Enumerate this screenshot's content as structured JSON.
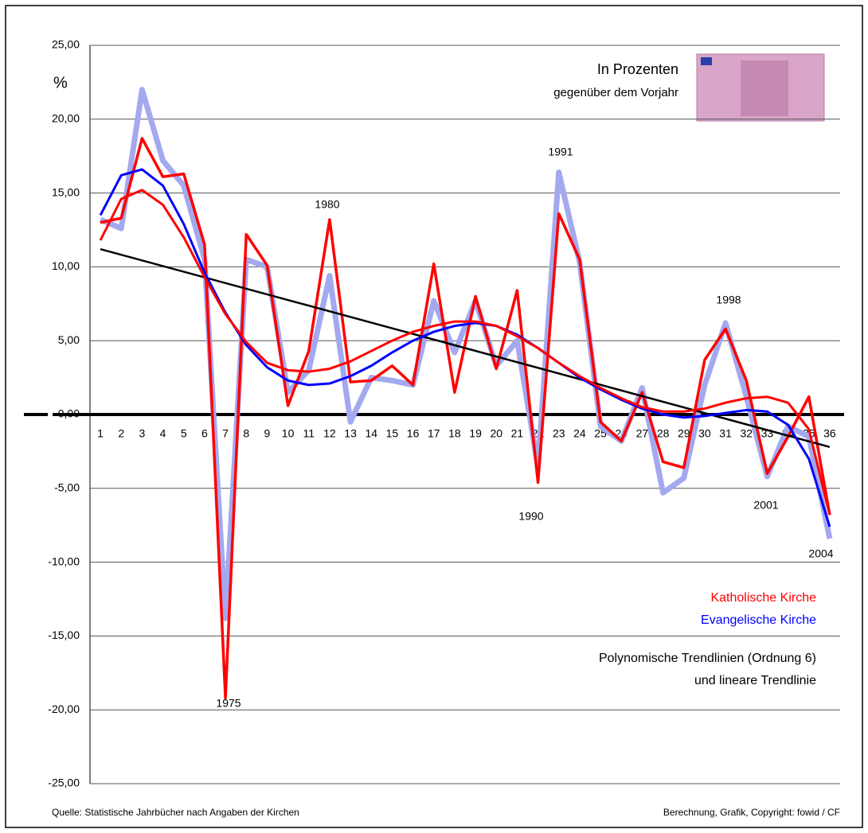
{
  "chart_data": {
    "type": "line",
    "x": [
      1,
      2,
      3,
      4,
      5,
      6,
      7,
      8,
      9,
      10,
      11,
      12,
      13,
      14,
      15,
      16,
      17,
      18,
      19,
      20,
      21,
      22,
      23,
      24,
      25,
      26,
      27,
      28,
      29,
      30,
      31,
      32,
      33,
      34,
      35,
      36
    ],
    "xlim": [
      0.5,
      36.5
    ],
    "ylim": [
      -25,
      25
    ],
    "yticks": [
      {
        "value": -25,
        "label": "-25,00"
      },
      {
        "value": -20,
        "label": "-20,00"
      },
      {
        "value": -15,
        "label": "-15,00"
      },
      {
        "value": -10,
        "label": "-10,00"
      },
      {
        "value": -5,
        "label": "-5,00"
      },
      {
        "value": 0,
        "label": "0,00"
      },
      {
        "value": 5,
        "label": "5,00"
      },
      {
        "value": 10,
        "label": "10,00"
      },
      {
        "value": 15,
        "label": "15,00"
      },
      {
        "value": 20,
        "label": "20,00"
      },
      {
        "value": 25,
        "label": "25,00"
      }
    ],
    "grid": true,
    "legend": "lower right",
    "y_label": "%",
    "subtitle_lines": [
      "In Prozenten",
      "gegenüber dem Vorjahr"
    ],
    "series": [
      {
        "name": "Evangelische Kirche",
        "color": "#0000ff",
        "line_color": "#a3a9ef",
        "values": [
          13.2,
          12.6,
          22.0,
          17.2,
          15.5,
          10.5,
          -13.8,
          10.5,
          10.0,
          1.5,
          3.0,
          9.4,
          -0.5,
          2.5,
          2.3,
          2.0,
          7.7,
          4.2,
          7.7,
          3.3,
          5.0,
          -3.5,
          16.4,
          10.3,
          -0.8,
          -1.8,
          1.8,
          -5.3,
          -4.3,
          2.0,
          6.2,
          1.2,
          -4.2,
          -0.8,
          -1.5,
          -8.4
        ],
        "trend_values": [
          13.5,
          16.2,
          16.6,
          15.5,
          12.9,
          9.6,
          6.9,
          4.7,
          3.2,
          2.3,
          2.0,
          2.1,
          2.6,
          3.3,
          4.2,
          5.0,
          5.6,
          6.0,
          6.2,
          6.0,
          5.4,
          4.5,
          3.5,
          2.5,
          1.7,
          1.0,
          0.4,
          0.0,
          -0.2,
          -0.1,
          0.1,
          0.3,
          0.2,
          -0.7,
          -3.0,
          -7.6
        ]
      },
      {
        "name": "Katholische Kirche",
        "color": "#ff0000",
        "line_color": "#ff0000",
        "values": [
          13.0,
          13.3,
          18.7,
          16.1,
          16.3,
          11.5,
          -19.2,
          12.2,
          10.1,
          0.6,
          4.3,
          13.2,
          2.2,
          2.3,
          3.3,
          2.0,
          10.2,
          1.5,
          8.0,
          3.1,
          8.4,
          -4.6,
          13.6,
          10.5,
          -0.5,
          -1.8,
          1.5,
          -3.2,
          -3.6,
          3.7,
          5.8,
          2.3,
          -4.0,
          -1.5,
          1.2,
          -6.8
        ],
        "trend_values": [
          11.8,
          14.6,
          15.2,
          14.2,
          12.0,
          9.3,
          6.8,
          4.9,
          3.5,
          3.0,
          2.9,
          3.1,
          3.6,
          4.3,
          5.0,
          5.6,
          6.0,
          6.3,
          6.3,
          6.0,
          5.3,
          4.5,
          3.5,
          2.6,
          1.8,
          1.1,
          0.5,
          0.2,
          0.2,
          0.4,
          0.8,
          1.1,
          1.2,
          0.8,
          -1.0,
          -6.8
        ]
      }
    ],
    "linear_trend": {
      "x": [
        1,
        36
      ],
      "values": [
        11.2,
        -2.2
      ],
      "color": "#000000"
    },
    "trend_note": [
      "Polynomische Trendlinien (Ordnung 6)",
      "und lineare Trendlinie"
    ],
    "annotations": [
      "1975",
      "1980",
      "1991",
      "1990",
      "1998",
      "2001",
      "2004"
    ],
    "source": "Quelle: Statistische Jahrbücher nach Angaben der Kirchen",
    "credit": "Berechnung, Grafik, Copyright: fowid / CF"
  }
}
